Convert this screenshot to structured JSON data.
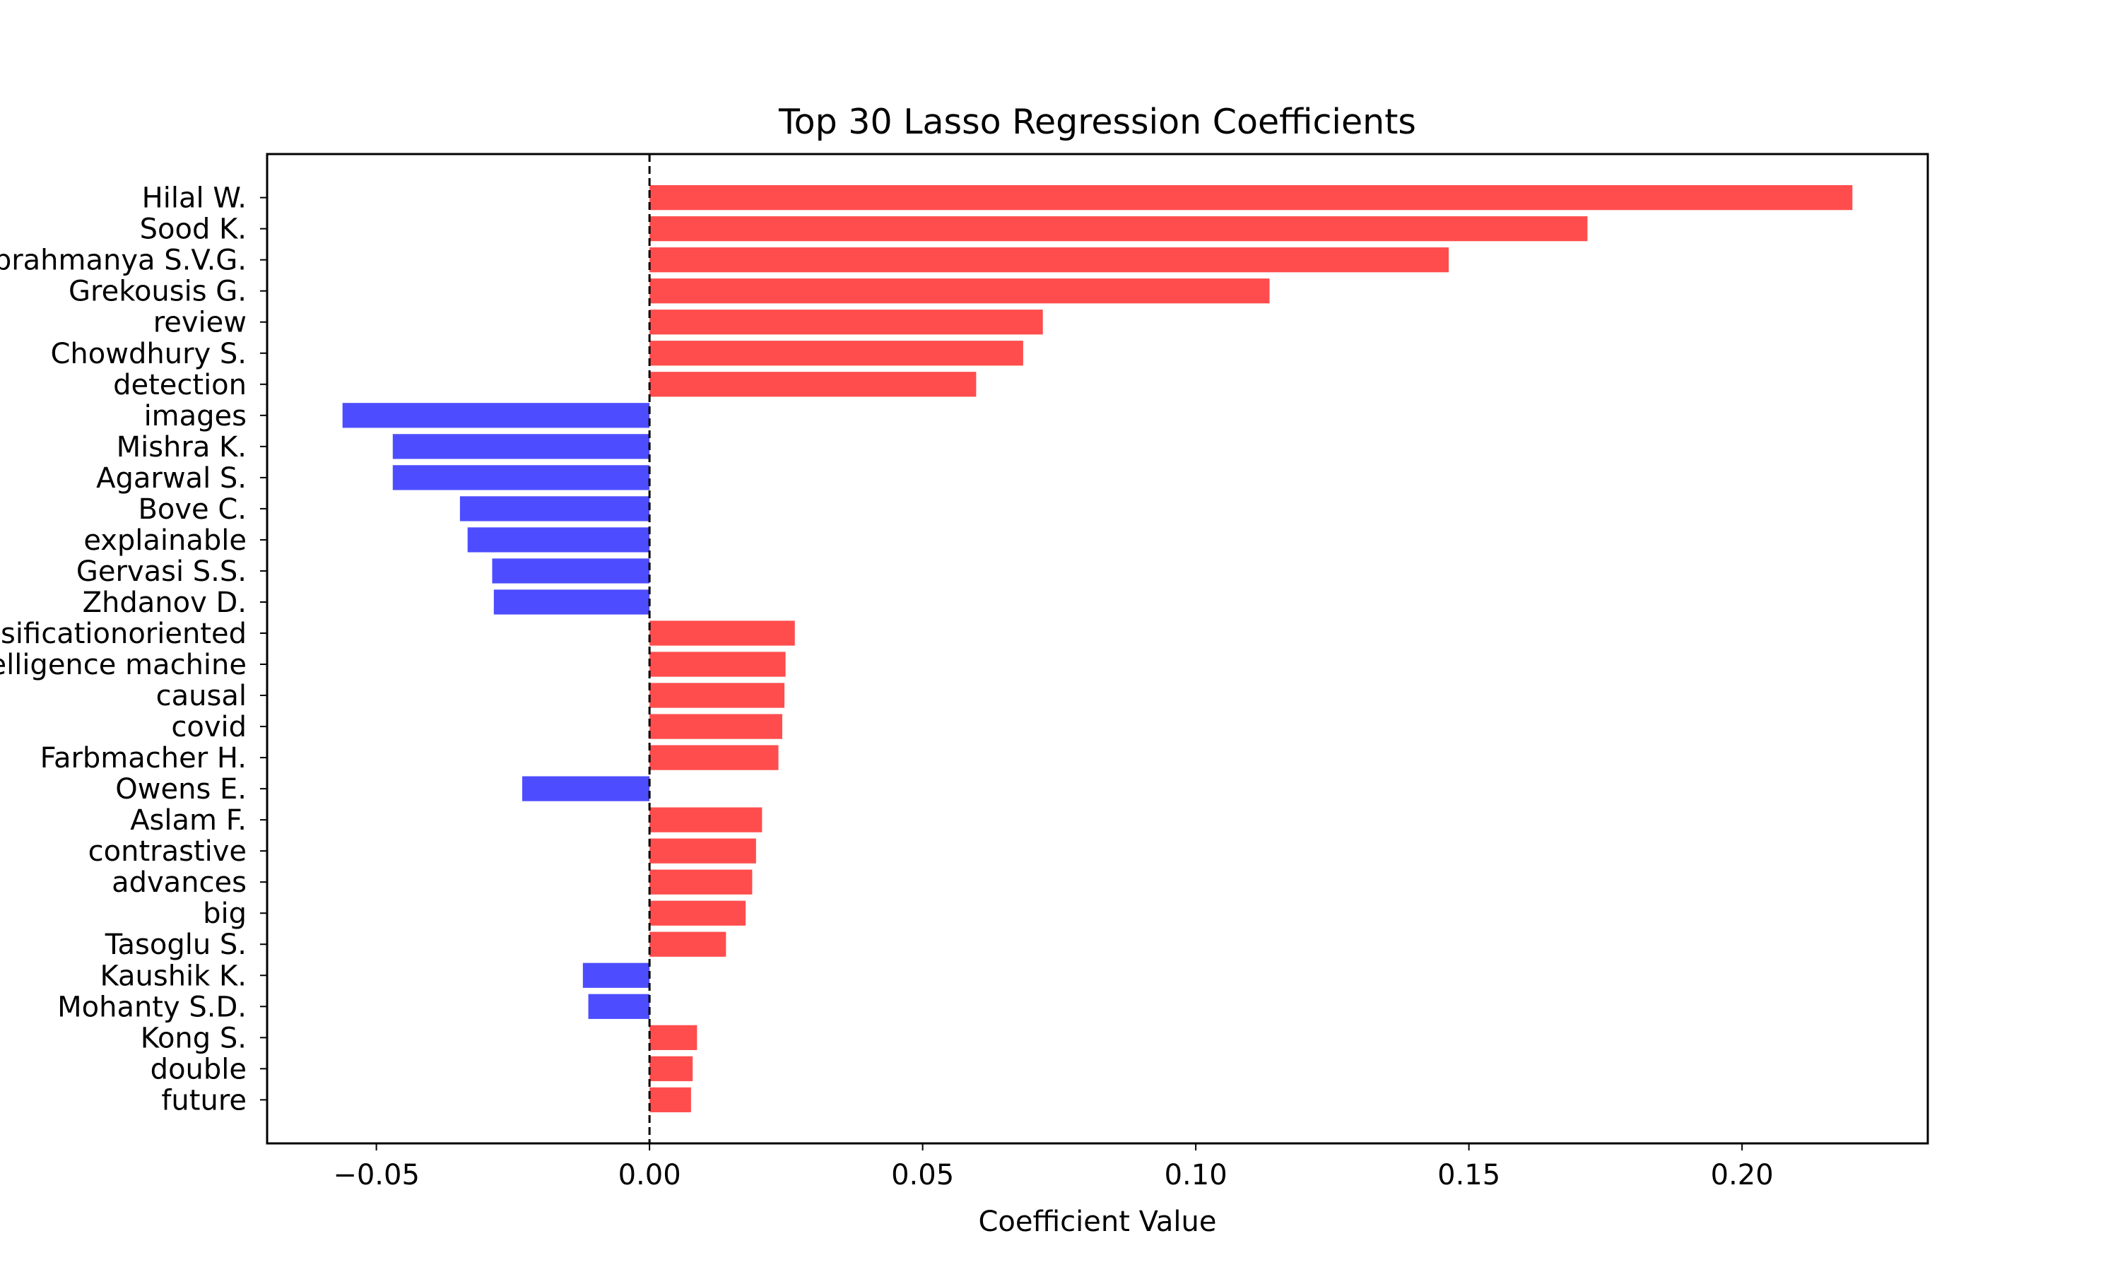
{
  "chart_data": {
    "type": "bar",
    "orientation": "horizontal",
    "title": "Top 30 Lasso Regression Coefficients",
    "xlabel": "Coefficient Value",
    "ylabel": "",
    "xlim": [
      -0.07,
      0.234
    ],
    "x_ticks": [
      -0.05,
      0.0,
      0.05,
      0.1,
      0.15,
      0.2
    ],
    "x_tick_labels": [
      "−0.05",
      "0.00",
      "0.05",
      "0.10",
      "0.15",
      "0.20"
    ],
    "reference_line": 0,
    "grid": false,
    "positive_color": "#ff4d4d",
    "negative_color": "#4d4dff",
    "categories": [
      "Hilal W.",
      "Sood K.",
      "Subrahmanya S.V.G.",
      "Grekousis G.",
      "review",
      "Chowdhury S.",
      "detection",
      "images",
      "Mishra K.",
      "Agarwal S.",
      "Bove C.",
      "explainable",
      "Gervasi S.S.",
      "Zhdanov D.",
      "classificationoriented",
      "intelligence machine",
      "causal",
      "covid",
      "Farbmacher H.",
      "Owens E.",
      "Aslam F.",
      "contrastive",
      "advances",
      "big",
      "Tasoglu S.",
      "Kaushik K.",
      "Mohanty S.D.",
      "Kong S.",
      "double",
      "future"
    ],
    "values": [
      0.2202,
      0.1717,
      0.1463,
      0.1135,
      0.072,
      0.0684,
      0.0598,
      -0.0562,
      -0.047,
      -0.047,
      -0.0347,
      -0.0333,
      -0.0288,
      -0.0285,
      0.0266,
      0.0249,
      0.0247,
      0.0243,
      0.0236,
      -0.0233,
      0.0206,
      0.0195,
      0.0188,
      0.0176,
      0.014,
      -0.0122,
      -0.0112,
      0.0087,
      0.0079,
      0.0076
    ]
  }
}
